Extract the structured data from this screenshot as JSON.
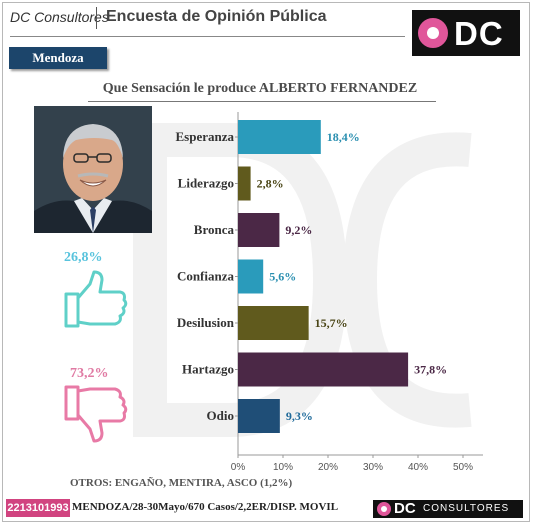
{
  "header": {
    "brand": "DC Consultores",
    "title": "Encuesta de Opinión Pública",
    "logo_text": "DC"
  },
  "region": "Mendoza",
  "summary": {
    "positive_pct": "26,8%",
    "negative_pct": "73,2%"
  },
  "others_note": "OTROS: ENGAÑO, MENTIRA, ASCO (1,2%)",
  "footer": {
    "phone": "2213101993",
    "details": "MENDOZA/28-30Mayo/670 Casos/2,2ER/DISP. MOVIL",
    "logo_dc": "DC",
    "logo_sub": "CONSULTORES"
  },
  "colors": {
    "teal": "#2a9bbb",
    "olive": "#605a1d",
    "plum": "#4b2846",
    "navy": "#1f4e77",
    "pink": "#e0569a",
    "badge": "#1c456b"
  },
  "icons": {
    "positive": "thumbs-up-icon",
    "negative": "thumbs-down-icon"
  },
  "chart_data": {
    "type": "bar",
    "orientation": "horizontal",
    "title": "Que Sensación le produce ALBERTO FERNANDEZ",
    "categories": [
      "Esperanza",
      "Liderazgo",
      "Bronca",
      "Confianza",
      "Desilusion",
      "Hartazgo",
      "Odio"
    ],
    "values": [
      18.4,
      2.8,
      9.2,
      5.6,
      15.7,
      37.8,
      9.3
    ],
    "value_labels": [
      "18,4%",
      "2,8%",
      "9,2%",
      "5,6%",
      "15,7%",
      "37,8%",
      "9,3%"
    ],
    "bar_colors": [
      "#2a9bbb",
      "#605a1d",
      "#4b2846",
      "#2a9bbb",
      "#605a1d",
      "#4b2846",
      "#1f4e77"
    ],
    "label_colors": [
      "#2a8fb0",
      "#4a4516",
      "#4b2846",
      "#2a8fb0",
      "#4a4516",
      "#4b2846",
      "#1f6a9a"
    ],
    "xlim": [
      0,
      50
    ],
    "xticks": [
      0,
      10,
      20,
      30,
      40,
      50
    ],
    "xtick_labels": [
      "0%",
      "10%",
      "20%",
      "30%",
      "40%",
      "50%"
    ],
    "xlabel": "",
    "ylabel": "",
    "grid": false,
    "legend": "none"
  }
}
